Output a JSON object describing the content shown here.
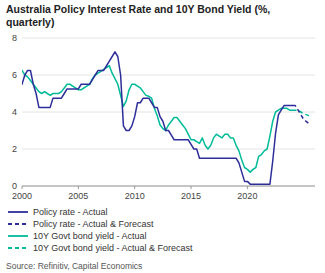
{
  "chart_data": {
    "type": "line",
    "title": "Australia Policy Interest Rate and 10Y Bond Yield (%, quarterly)",
    "annotations": [
      "Source: Refinitiv, Capital Economics"
    ],
    "xlim": [
      2000,
      2026
    ],
    "xticks": [
      2000,
      2005,
      2010,
      2015,
      2020
    ],
    "ylim": [
      0,
      8
    ],
    "yticks": [
      0,
      2,
      4,
      6,
      8
    ],
    "grid": true,
    "legend": "bottom",
    "series": [
      {
        "name": "Policy rate - Actual",
        "color": "#2e2e9a",
        "line_style": "solid",
        "x": [
          2000.0,
          2000.25,
          2000.5,
          2000.75,
          2001.0,
          2001.25,
          2001.5,
          2001.75,
          2002.0,
          2002.25,
          2002.5,
          2002.75,
          2003.0,
          2003.25,
          2003.5,
          2003.75,
          2004.0,
          2004.25,
          2004.5,
          2004.75,
          2005.0,
          2005.25,
          2005.5,
          2005.75,
          2006.0,
          2006.25,
          2006.5,
          2006.75,
          2007.0,
          2007.25,
          2007.5,
          2007.75,
          2008.0,
          2008.25,
          2008.5,
          2008.75,
          2009.0,
          2009.25,
          2009.5,
          2009.75,
          2010.0,
          2010.25,
          2010.5,
          2010.75,
          2011.0,
          2011.25,
          2011.5,
          2011.75,
          2012.0,
          2012.25,
          2012.5,
          2012.75,
          2013.0,
          2013.25,
          2013.5,
          2013.75,
          2014.0,
          2014.25,
          2014.5,
          2014.75,
          2015.0,
          2015.25,
          2015.5,
          2015.75,
          2016.0,
          2016.25,
          2016.5,
          2016.75,
          2017.0,
          2017.25,
          2017.5,
          2017.75,
          2018.0,
          2018.25,
          2018.5,
          2018.75,
          2019.0,
          2019.25,
          2019.5,
          2019.75,
          2020.0,
          2020.25,
          2020.5,
          2020.75,
          2021.0,
          2021.25,
          2021.5,
          2021.75,
          2022.0,
          2022.25,
          2022.5,
          2022.75,
          2023.0,
          2023.25,
          2023.5,
          2023.75,
          2024.0
        ],
        "values": [
          5.5,
          6.0,
          6.25,
          6.25,
          5.5,
          5.0,
          4.25,
          4.25,
          4.25,
          4.25,
          4.25,
          4.75,
          4.75,
          4.75,
          4.75,
          5.0,
          5.25,
          5.25,
          5.25,
          5.25,
          5.25,
          5.5,
          5.5,
          5.5,
          5.5,
          5.75,
          6.0,
          6.25,
          6.25,
          6.25,
          6.5,
          6.75,
          7.0,
          7.25,
          7.0,
          6.0,
          3.25,
          3.0,
          3.0,
          3.25,
          3.75,
          4.5,
          4.5,
          4.75,
          4.75,
          4.75,
          4.5,
          4.25,
          4.25,
          3.75,
          3.5,
          3.0,
          3.0,
          2.75,
          2.5,
          2.5,
          2.5,
          2.5,
          2.5,
          2.5,
          2.25,
          2.0,
          2.0,
          1.5,
          1.5,
          1.5,
          1.5,
          1.5,
          1.5,
          1.5,
          1.5,
          1.5,
          1.5,
          1.5,
          1.5,
          1.5,
          1.5,
          1.25,
          0.75,
          0.25,
          0.25,
          0.1,
          0.1,
          0.1,
          0.1,
          0.1,
          0.1,
          0.1,
          0.1,
          1.35,
          2.85,
          3.85,
          4.1,
          4.35,
          4.35,
          4.35,
          4.35
        ]
      },
      {
        "name": "Policy rate - Actual & Forecast",
        "color": "#2e2e9a",
        "line_style": "dashed",
        "x": [
          2024.0,
          2024.25,
          2024.5,
          2024.75,
          2025.0,
          2025.5
        ],
        "values": [
          4.35,
          4.35,
          4.1,
          3.85,
          3.6,
          3.35
        ]
      },
      {
        "name": "10Y Govt bond yield - Actual",
        "color": "#00bb99",
        "line_style": "solid",
        "x": [
          2000.0,
          2000.25,
          2000.5,
          2000.75,
          2001.0,
          2001.25,
          2001.5,
          2001.75,
          2002.0,
          2002.25,
          2002.5,
          2002.75,
          2003.0,
          2003.25,
          2003.5,
          2003.75,
          2004.0,
          2004.25,
          2004.5,
          2004.75,
          2005.0,
          2005.25,
          2005.5,
          2005.75,
          2006.0,
          2006.25,
          2006.5,
          2006.75,
          2007.0,
          2007.25,
          2007.5,
          2007.75,
          2008.0,
          2008.25,
          2008.5,
          2008.75,
          2009.0,
          2009.25,
          2009.5,
          2009.75,
          2010.0,
          2010.25,
          2010.5,
          2010.75,
          2011.0,
          2011.25,
          2011.5,
          2011.75,
          2012.0,
          2012.25,
          2012.5,
          2012.75,
          2013.0,
          2013.25,
          2013.5,
          2013.75,
          2014.0,
          2014.25,
          2014.5,
          2014.75,
          2015.0,
          2015.25,
          2015.5,
          2015.75,
          2016.0,
          2016.25,
          2016.5,
          2016.75,
          2017.0,
          2017.25,
          2017.5,
          2017.75,
          2018.0,
          2018.25,
          2018.5,
          2018.75,
          2019.0,
          2019.25,
          2019.5,
          2019.75,
          2020.0,
          2020.25,
          2020.5,
          2020.75,
          2021.0,
          2021.25,
          2021.5,
          2021.75,
          2022.0,
          2022.25,
          2022.5,
          2022.75,
          2023.0,
          2023.25,
          2023.5,
          2023.75,
          2024.0
        ],
        "values": [
          6.25,
          6.0,
          5.9,
          5.7,
          5.5,
          5.3,
          5.1,
          5.0,
          5.1,
          5.0,
          4.9,
          5.0,
          5.0,
          5.0,
          5.1,
          5.3,
          5.5,
          5.5,
          5.4,
          5.3,
          5.2,
          5.2,
          5.3,
          5.4,
          5.5,
          5.8,
          6.0,
          6.1,
          6.2,
          6.3,
          6.4,
          6.5,
          6.1,
          5.8,
          5.5,
          4.9,
          4.3,
          4.6,
          5.2,
          5.5,
          5.5,
          5.4,
          5.3,
          5.1,
          4.9,
          4.85,
          4.75,
          4.2,
          3.8,
          3.3,
          3.1,
          3.0,
          3.3,
          3.5,
          3.7,
          3.7,
          3.5,
          3.3,
          3.1,
          2.8,
          2.5,
          2.5,
          2.4,
          2.3,
          2.6,
          2.2,
          2.0,
          2.2,
          2.6,
          2.8,
          2.7,
          2.6,
          2.8,
          2.8,
          2.6,
          2.6,
          2.2,
          1.9,
          1.4,
          1.0,
          0.9,
          0.75,
          0.9,
          1.0,
          1.6,
          1.7,
          1.9,
          2.0,
          2.7,
          3.5,
          4.0,
          4.1,
          4.2,
          4.2,
          4.2,
          4.1,
          4.1
        ]
      },
      {
        "name": "10Y Govt bond yield - Actual & Forecast",
        "color": "#00bb99",
        "line_style": "dashed",
        "x": [
          2024.0,
          2024.25,
          2024.5,
          2024.75,
          2025.0,
          2025.5
        ],
        "values": [
          4.1,
          4.1,
          4.1,
          4.0,
          3.9,
          3.8
        ]
      }
    ]
  }
}
